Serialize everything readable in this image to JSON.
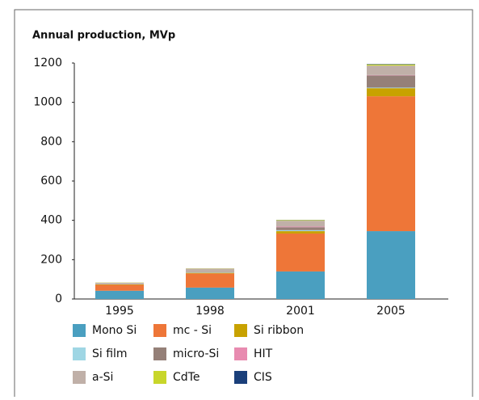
{
  "chart_data": {
    "type": "stacked_bar",
    "title": "Annual production, MVp",
    "categories": [
      "1995",
      "1998",
      "2001",
      "2005"
    ],
    "series": [
      {
        "name": "Mono Si",
        "color": "#4a9fc0",
        "values": [
          42,
          58,
          140,
          345
        ]
      },
      {
        "name": "mc - Si",
        "color": "#ee7638",
        "values": [
          30,
          72,
          193,
          686
        ]
      },
      {
        "name": "Si ribbon",
        "color": "#c8a200",
        "values": [
          2,
          3,
          12,
          41
        ]
      },
      {
        "name": "Si film",
        "color": "#9fd6e4",
        "values": [
          1,
          2,
          5,
          3
        ]
      },
      {
        "name": "micro-Si",
        "color": "#958078",
        "values": [
          0,
          2,
          15,
          62
        ]
      },
      {
        "name": "HIT",
        "color": "#e88bb0",
        "values": [
          0,
          0,
          3,
          2
        ]
      },
      {
        "name": "a-Si",
        "color": "#c0b0a8",
        "values": [
          8,
          18,
          30,
          48
        ]
      },
      {
        "name": "CdTe",
        "color": "#c8d62a",
        "values": [
          1,
          1,
          3,
          6
        ]
      },
      {
        "name": "CIS",
        "color": "#1a3f7a",
        "values": [
          0,
          0,
          1,
          2
        ]
      }
    ],
    "ylim": [
      0,
      1200
    ],
    "yticks": [
      0,
      200,
      400,
      600,
      800,
      1000,
      1200
    ],
    "grid": false
  }
}
